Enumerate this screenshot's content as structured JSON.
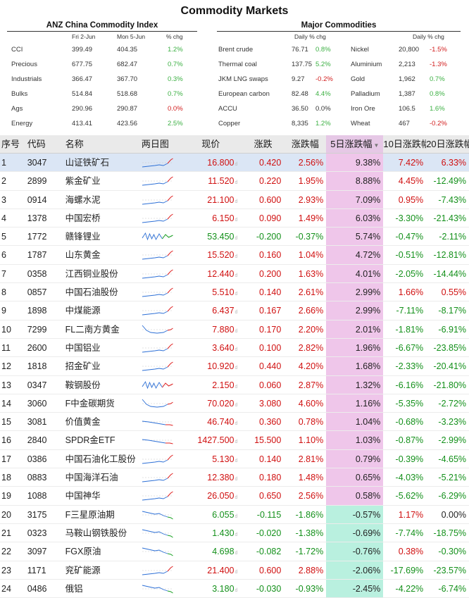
{
  "title": "Commodity Markets",
  "anz": {
    "title": "ANZ China Commodity Index",
    "col1": "Fri 2-Jun",
    "col2": "Mon 5-Jun",
    "col3": "% chg",
    "rows": [
      {
        "name": "CCI",
        "v1": "399.49",
        "v2": "404.35",
        "chg": "1.2%",
        "dir": "pos"
      },
      {
        "name": "Precious",
        "v1": "677.75",
        "v2": "682.47",
        "chg": "0.7%",
        "dir": "pos"
      },
      {
        "name": "Industrials",
        "v1": "366.47",
        "v2": "367.70",
        "chg": "0.3%",
        "dir": "pos"
      },
      {
        "name": "Bulks",
        "v1": "514.84",
        "v2": "518.68",
        "chg": "0.7%",
        "dir": "pos"
      },
      {
        "name": "Ags",
        "v1": "290.96",
        "v2": "290.87",
        "chg": "0.0%",
        "dir": "zero"
      },
      {
        "name": "Energy",
        "v1": "413.41",
        "v2": "423.56",
        "chg": "2.5%",
        "dir": "pos"
      }
    ]
  },
  "major": {
    "title": "Major Commodities",
    "head_a": "Daily % chg",
    "head_b": "Daily % chg",
    "left": [
      {
        "name": "Brent crude",
        "value": "76.71",
        "chg": "0.8%",
        "dir": "pos"
      },
      {
        "name": "Thermal coal",
        "value": "137.75",
        "chg": "5.2%",
        "dir": "pos"
      },
      {
        "name": "JKM LNG swaps",
        "value": "9.27",
        "chg": "-0.2%",
        "dir": "neg"
      },
      {
        "name": "European carbon",
        "value": "82.48",
        "chg": "4.4%",
        "dir": "pos"
      },
      {
        "name": "ACCU",
        "value": "36.50",
        "chg": "0.0%",
        "dir": "flat"
      },
      {
        "name": "Copper",
        "value": "8,335",
        "chg": "1.2%",
        "dir": "pos"
      }
    ],
    "right": [
      {
        "name": "Nickel",
        "value": "20,800",
        "chg": "-1.5%",
        "dir": "neg"
      },
      {
        "name": "Aluminium",
        "value": "2,213",
        "chg": "-1.3%",
        "dir": "neg"
      },
      {
        "name": "Gold",
        "value": "1,962",
        "chg": "0.7%",
        "dir": "pos"
      },
      {
        "name": "Palladium",
        "value": "1,387",
        "chg": "0.8%",
        "dir": "pos"
      },
      {
        "name": "Iron Ore",
        "value": "106.5",
        "chg": "1.6%",
        "dir": "pos"
      },
      {
        "name": "Wheat",
        "value": "467",
        "chg": "-0.2%",
        "dir": "neg"
      }
    ]
  },
  "table": {
    "headers": {
      "no": "序号",
      "code": "代码",
      "name": "名称",
      "spark": "两日图",
      "price": "现价",
      "chg": "涨跌",
      "pct": "涨跌幅",
      "d5": "5日涨跌幅",
      "d5_sort": "▼",
      "d10": "10日涨跌幅",
      "d20": "20日涨跌幅"
    },
    "price_suffix": "d",
    "rows": [
      {
        "no": "1",
        "code": "3047",
        "name": "山证铁矿石",
        "price": "16.800",
        "chg": "0.420",
        "pct": "2.56%",
        "d5": "9.38%",
        "d10": "7.42%",
        "d20": "6.33%",
        "up": true,
        "spark": "up"
      },
      {
        "no": "2",
        "code": "2899",
        "name": "紫金矿业",
        "price": "11.520",
        "chg": "0.220",
        "pct": "1.95%",
        "d5": "8.88%",
        "d10": "4.45%",
        "d20": "-12.49%",
        "up": true,
        "spark": "up"
      },
      {
        "no": "3",
        "code": "0914",
        "name": "海螺水泥",
        "price": "21.100",
        "chg": "0.600",
        "pct": "2.93%",
        "d5": "7.09%",
        "d10": "0.95%",
        "d20": "-7.43%",
        "up": true,
        "spark": "up"
      },
      {
        "no": "4",
        "code": "1378",
        "name": "中国宏桥",
        "price": "6.150",
        "chg": "0.090",
        "pct": "1.49%",
        "d5": "6.03%",
        "d10": "-3.30%",
        "d20": "-21.43%",
        "up": true,
        "spark": "up"
      },
      {
        "no": "5",
        "code": "1772",
        "name": "赣锋锂业",
        "price": "53.450",
        "chg": "-0.200",
        "pct": "-0.37%",
        "d5": "5.74%",
        "d10": "-0.47%",
        "d20": "-2.11%",
        "up": false,
        "spark": "vol"
      },
      {
        "no": "6",
        "code": "1787",
        "name": "山东黄金",
        "price": "15.520",
        "chg": "0.160",
        "pct": "1.04%",
        "d5": "4.72%",
        "d10": "-0.51%",
        "d20": "-12.81%",
        "up": true,
        "spark": "up"
      },
      {
        "no": "7",
        "code": "0358",
        "name": "江西铜业股份",
        "price": "12.440",
        "chg": "0.200",
        "pct": "1.63%",
        "d5": "4.01%",
        "d10": "-2.05%",
        "d20": "-14.44%",
        "up": true,
        "spark": "up"
      },
      {
        "no": "8",
        "code": "0857",
        "name": "中国石油股份",
        "price": "5.510",
        "chg": "0.140",
        "pct": "2.61%",
        "d5": "2.99%",
        "d10": "1.66%",
        "d20": "0.55%",
        "up": true,
        "spark": "up"
      },
      {
        "no": "9",
        "code": "1898",
        "name": "中煤能源",
        "price": "6.437",
        "chg": "0.167",
        "pct": "2.66%",
        "d5": "2.99%",
        "d10": "-7.11%",
        "d20": "-8.17%",
        "up": true,
        "spark": "up"
      },
      {
        "no": "10",
        "code": "7299",
        "name": "FL二南方黄金",
        "price": "7.880",
        "chg": "0.170",
        "pct": "2.20%",
        "d5": "2.01%",
        "d10": "-1.81%",
        "d20": "-6.91%",
        "up": true,
        "spark": "dip"
      },
      {
        "no": "11",
        "code": "2600",
        "name": "中国铝业",
        "price": "3.640",
        "chg": "0.100",
        "pct": "2.82%",
        "d5": "1.96%",
        "d10": "-6.67%",
        "d20": "-23.85%",
        "up": true,
        "spark": "up"
      },
      {
        "no": "12",
        "code": "1818",
        "name": "招金矿业",
        "price": "10.920",
        "chg": "0.440",
        "pct": "4.20%",
        "d5": "1.68%",
        "d10": "-2.33%",
        "d20": "-20.41%",
        "up": true,
        "spark": "up"
      },
      {
        "no": "13",
        "code": "0347",
        "name": "鞍钢股份",
        "price": "2.150",
        "chg": "0.060",
        "pct": "2.87%",
        "d5": "1.32%",
        "d10": "-6.16%",
        "d20": "-21.80%",
        "up": true,
        "spark": "vol"
      },
      {
        "no": "14",
        "code": "3060",
        "name": "F中金碳期货",
        "price": "70.020",
        "chg": "3.080",
        "pct": "4.60%",
        "d5": "1.16%",
        "d10": "-5.35%",
        "d20": "-2.72%",
        "up": true,
        "spark": "dip"
      },
      {
        "no": "15",
        "code": "3081",
        "name": "价值黄金",
        "price": "46.740",
        "chg": "0.360",
        "pct": "0.78%",
        "d5": "1.04%",
        "d10": "-0.68%",
        "d20": "-3.23%",
        "up": true,
        "spark": "flat"
      },
      {
        "no": "16",
        "code": "2840",
        "name": "SPDR金ETF",
        "price": "1427.500",
        "chg": "15.500",
        "pct": "1.10%",
        "d5": "1.03%",
        "d10": "-0.87%",
        "d20": "-2.99%",
        "up": true,
        "spark": "flat"
      },
      {
        "no": "17",
        "code": "0386",
        "name": "中国石油化工股份",
        "price": "5.130",
        "chg": "0.140",
        "pct": "2.81%",
        "d5": "0.79%",
        "d10": "-0.39%",
        "d20": "-4.65%",
        "up": true,
        "spark": "up"
      },
      {
        "no": "18",
        "code": "0883",
        "name": "中国海洋石油",
        "price": "12.380",
        "chg": "0.180",
        "pct": "1.48%",
        "d5": "0.65%",
        "d10": "-4.03%",
        "d20": "-5.21%",
        "up": true,
        "spark": "up"
      },
      {
        "no": "19",
        "code": "1088",
        "name": "中国神华",
        "price": "26.050",
        "chg": "0.650",
        "pct": "2.56%",
        "d5": "0.58%",
        "d10": "-5.62%",
        "d20": "-6.29%",
        "up": true,
        "spark": "up"
      },
      {
        "no": "20",
        "code": "3175",
        "name": "F三星原油期",
        "price": "6.055",
        "chg": "-0.115",
        "pct": "-1.86%",
        "d5": "-0.57%",
        "d10": "1.17%",
        "d20": "0.00%",
        "up": false,
        "spark": "down"
      },
      {
        "no": "21",
        "code": "0323",
        "name": "马鞍山钢铁股份",
        "price": "1.430",
        "chg": "-0.020",
        "pct": "-1.38%",
        "d5": "-0.69%",
        "d10": "-7.74%",
        "d20": "-18.75%",
        "up": false,
        "spark": "down"
      },
      {
        "no": "22",
        "code": "3097",
        "name": "FGX原油",
        "price": "4.698",
        "chg": "-0.082",
        "pct": "-1.72%",
        "d5": "-0.76%",
        "d10": "0.38%",
        "d20": "-0.30%",
        "up": false,
        "spark": "down"
      },
      {
        "no": "23",
        "code": "1171",
        "name": "兖矿能源",
        "price": "21.400",
        "chg": "0.600",
        "pct": "2.88%",
        "d5": "-2.06%",
        "d10": "-17.69%",
        "d20": "-23.57%",
        "up": true,
        "spark": "up"
      },
      {
        "no": "24",
        "code": "0486",
        "name": "俄铝",
        "price": "3.180",
        "chg": "-0.030",
        "pct": "-0.93%",
        "d5": "-2.45%",
        "d10": "-4.22%",
        "d20": "-6.74%",
        "up": false,
        "spark": "down"
      }
    ]
  },
  "colors": {
    "up": "#d01010",
    "down": "#13901a",
    "d5_pos_bg": "#efc6ea",
    "d5_neg_bg": "#b9f0df",
    "header_bg": "#eaeaea",
    "selected_bg": "#dbe6f5"
  }
}
